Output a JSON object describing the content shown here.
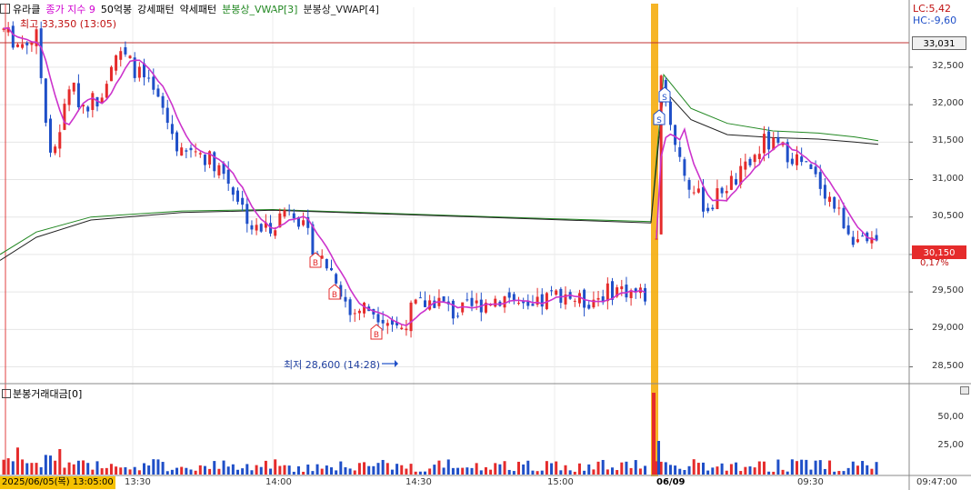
{
  "header": {
    "symbol": "유라클",
    "ind1": "종가 지수 9",
    "ind2": "50억봉",
    "ind3": "강세패턴",
    "ind4": "약세패턴",
    "ind5": "분봉상_VWAP[3]",
    "ind6": "분봉상_VWAP[4]"
  },
  "annotations": {
    "high": "최고 33,350 (13:05)",
    "low": "최저 28,600 (14:28)",
    "lc": "LC:5,42",
    "hc": "HC:-9,60"
  },
  "price_axis": {
    "ticks": [
      "32,500",
      "32,000",
      "31,500",
      "31,000",
      "30,500",
      "30,000",
      "29,500",
      "29,000",
      "28,500"
    ],
    "tick_values": [
      32500,
      32000,
      31500,
      31000,
      30500,
      30000,
      29500,
      29000,
      28500
    ],
    "ref_value": "33,031",
    "current_value": "30,150",
    "current_pct": "0,17%"
  },
  "volume_panel": {
    "title": "분봉거래대금[0]",
    "ticks": [
      "50,00",
      "25,00"
    ]
  },
  "time_axis": {
    "cursor_label": "2025/06/05(목) 13:05:00",
    "ticks": [
      "13:30",
      "14:00",
      "14:30",
      "15:00",
      "06/09",
      "09:30"
    ],
    "right_label": "09:47:00"
  },
  "chart_data": {
    "type": "candlestick",
    "y_range": [
      28300,
      33300
    ],
    "reference_line": 33031,
    "markers": {
      "buy": "B",
      "sell": "S"
    },
    "colors": {
      "up": "#e52b2b",
      "down": "#1f4fc8",
      "ma": "#cc33cc",
      "vwap1": "#228822",
      "vwap2": "#222222",
      "cursor": "#f0a000"
    }
  }
}
